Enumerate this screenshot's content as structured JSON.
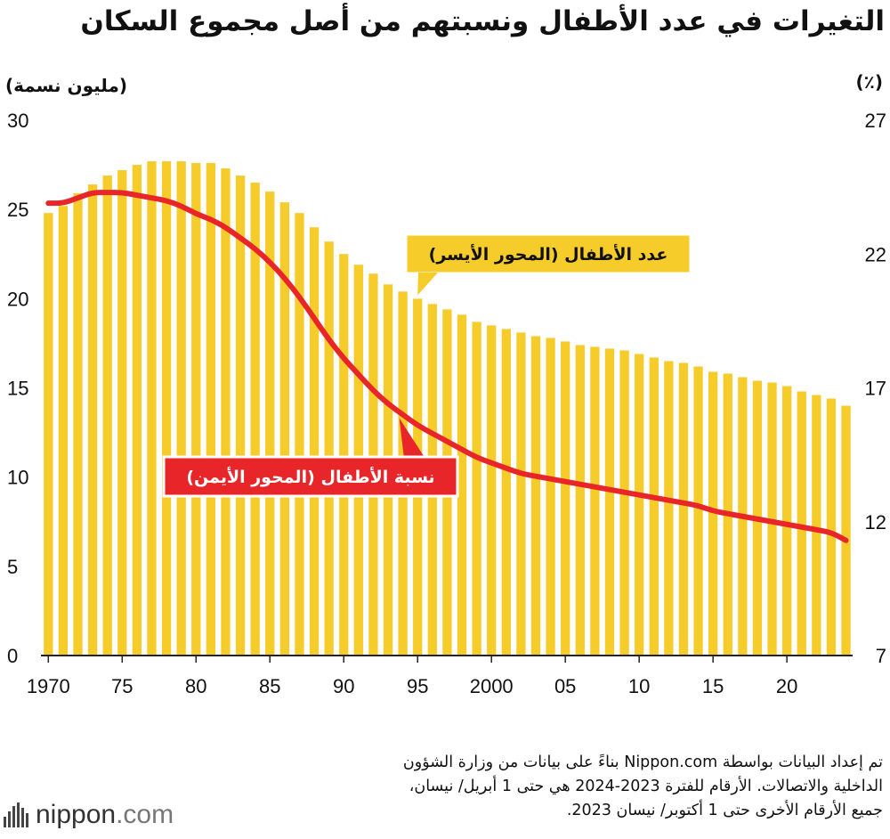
{
  "title": "التغيرات في عدد الأطفال ونسبتهم من أصل مجموع السكان",
  "left_unit": "(مليون نسمة)",
  "right_unit": "(٪)",
  "source_lines": [
    "تم إعداد البيانات بواسطة Nippon.com بناءً على بيانات من وزارة الشؤون",
    "الداخلية والاتصالات. الأرقام للفترة 2023-2024 هي حتى 1 أبريل/ نيسان،",
    "جميع الأرقام الأخرى حتى 1 أكتوبر/ نيسان 2023."
  ],
  "logo": {
    "name": "nippon",
    "suffix": ".com"
  },
  "colors": {
    "bars": "#f5cc2a",
    "line": "#e8262a",
    "callout_bar_bg": "#f5cc2a",
    "callout_line_bg": "#e8262a"
  },
  "chart_data": {
    "type": "bar",
    "x": [
      1970,
      1971,
      1972,
      1973,
      1974,
      1975,
      1976,
      1977,
      1978,
      1979,
      1980,
      1981,
      1982,
      1983,
      1984,
      1985,
      1986,
      1987,
      1988,
      1989,
      1990,
      1991,
      1992,
      1993,
      1994,
      1995,
      1996,
      1997,
      1998,
      1999,
      2000,
      2001,
      2002,
      2003,
      2004,
      2005,
      2006,
      2007,
      2008,
      2009,
      2010,
      2011,
      2012,
      2013,
      2014,
      2015,
      2016,
      2017,
      2018,
      2019,
      2020,
      2021,
      2022,
      2023,
      2024
    ],
    "x_tick_labels": [
      {
        "x": 1970,
        "label": "1970"
      },
      {
        "x": 1975,
        "label": "75"
      },
      {
        "x": 1980,
        "label": "80"
      },
      {
        "x": 1985,
        "label": "85"
      },
      {
        "x": 1990,
        "label": "90"
      },
      {
        "x": 1995,
        "label": "95"
      },
      {
        "x": 2000,
        "label": "2000"
      },
      {
        "x": 2005,
        "label": "05"
      },
      {
        "x": 2010,
        "label": "10"
      },
      {
        "x": 2015,
        "label": "15"
      },
      {
        "x": 2020,
        "label": "20"
      }
    ],
    "series": [
      {
        "name": "عدد الأطفال (المحور الأيسر)",
        "type": "bar",
        "axis": "left",
        "values": [
          24.8,
          25.2,
          25.9,
          26.4,
          26.9,
          27.2,
          27.5,
          27.7,
          27.7,
          27.7,
          27.6,
          27.6,
          27.3,
          26.9,
          26.5,
          26.0,
          25.4,
          24.8,
          24.0,
          23.2,
          22.5,
          21.9,
          21.4,
          20.8,
          20.4,
          20.0,
          19.7,
          19.4,
          19.1,
          18.7,
          18.5,
          18.3,
          18.1,
          17.9,
          17.8,
          17.6,
          17.4,
          17.3,
          17.2,
          17.1,
          16.9,
          16.7,
          16.5,
          16.4,
          16.2,
          15.9,
          15.8,
          15.6,
          15.4,
          15.3,
          15.1,
          14.8,
          14.6,
          14.4,
          14.0
        ]
      },
      {
        "name": "نسبة الأطفال (المحور الأيمن)",
        "type": "line",
        "axis": "right",
        "values": [
          23.9,
          23.9,
          24.1,
          24.3,
          24.3,
          24.3,
          24.2,
          24.1,
          24.0,
          23.8,
          23.5,
          23.3,
          23.0,
          22.6,
          22.2,
          21.7,
          21.1,
          20.4,
          19.6,
          18.8,
          18.1,
          17.5,
          16.9,
          16.4,
          16.0,
          15.6,
          15.3,
          15.0,
          14.7,
          14.4,
          14.2,
          14.0,
          13.8,
          13.7,
          13.6,
          13.5,
          13.4,
          13.3,
          13.2,
          13.1,
          13.0,
          12.9,
          12.8,
          12.7,
          12.6,
          12.4,
          12.3,
          12.2,
          12.1,
          12.0,
          11.9,
          11.8,
          11.7,
          11.6,
          11.3
        ]
      }
    ],
    "left_axis": {
      "ylim": [
        0,
        30
      ],
      "ticks": [
        0,
        5,
        10,
        15,
        20,
        25,
        30
      ]
    },
    "right_axis": {
      "ylim": [
        7,
        27
      ],
      "ticks": [
        7,
        12,
        17,
        22,
        27
      ]
    },
    "annotations": [
      {
        "text": "عدد الأطفال (المحور الأيسر)",
        "series": 0
      },
      {
        "text": "نسبة الأطفال (المحور الأيمن)",
        "series": 1
      }
    ],
    "grid": false
  }
}
